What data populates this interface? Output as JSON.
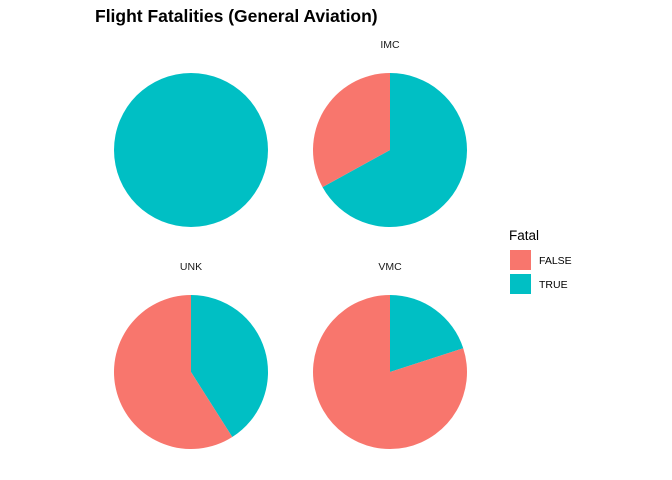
{
  "chart_data": {
    "type": "pie",
    "title": "Flight Fatalities (General Aviation)",
    "facet_layout": "2x2 grid",
    "legend": {
      "title": "Fatal",
      "placement": "right",
      "entries": [
        {
          "label": "FALSE",
          "color": "#F8766D"
        },
        {
          "label": "TRUE",
          "color": "#00BFC4"
        }
      ]
    },
    "facets": [
      {
        "label": "",
        "slices": [
          {
            "category": "FALSE",
            "value": 0.0
          },
          {
            "category": "TRUE",
            "value": 1.0
          }
        ]
      },
      {
        "label": "IMC",
        "slices": [
          {
            "category": "FALSE",
            "value": 0.33
          },
          {
            "category": "TRUE",
            "value": 0.67
          }
        ]
      },
      {
        "label": "UNK",
        "slices": [
          {
            "category": "FALSE",
            "value": 0.59
          },
          {
            "category": "TRUE",
            "value": 0.41
          }
        ]
      },
      {
        "label": "VMC",
        "slices": [
          {
            "category": "FALSE",
            "value": 0.8
          },
          {
            "category": "TRUE",
            "value": 0.2
          }
        ]
      }
    ],
    "grid": false
  }
}
